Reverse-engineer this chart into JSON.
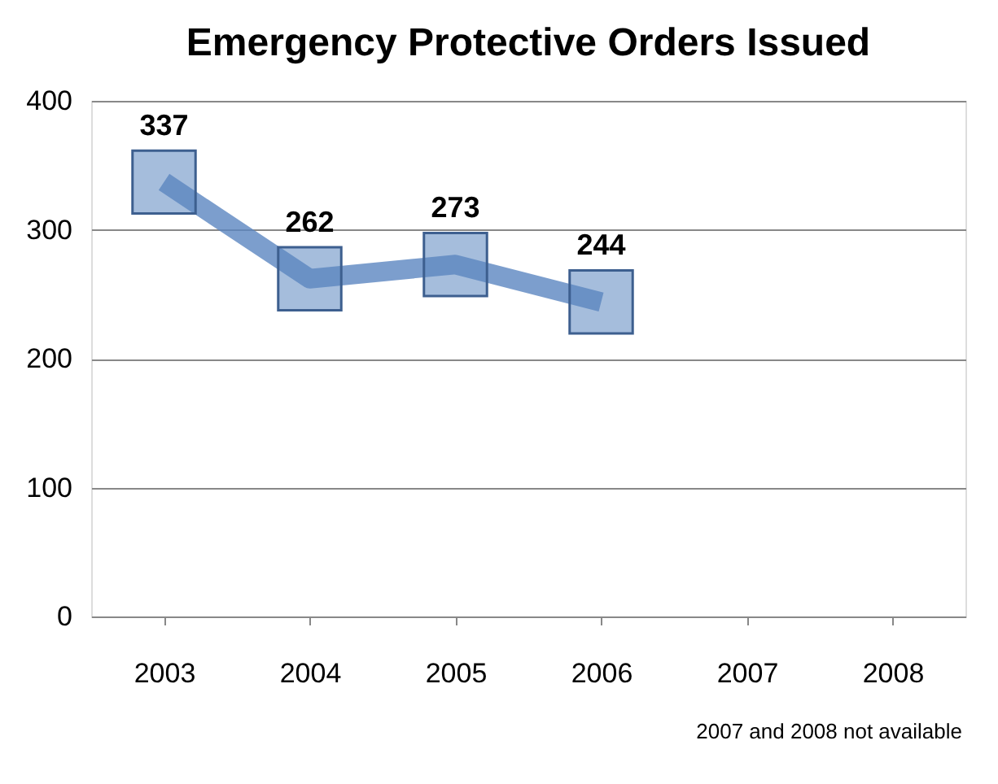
{
  "chart_data": {
    "type": "line",
    "title": "Emergency Protective Orders Issued",
    "categories": [
      "2003",
      "2004",
      "2005",
      "2006",
      "2007",
      "2008"
    ],
    "series": [
      {
        "color": "#5b86c0",
        "values": [
          337,
          262,
          273,
          244,
          null,
          null
        ]
      }
    ],
    "ylim": [
      0,
      400
    ],
    "yticks": [
      0,
      100,
      200,
      300,
      400
    ],
    "grid": "y",
    "marker": "square",
    "line_style": "solid",
    "data_labels": true,
    "annotations": [
      "2007 and 2008 not available"
    ]
  }
}
